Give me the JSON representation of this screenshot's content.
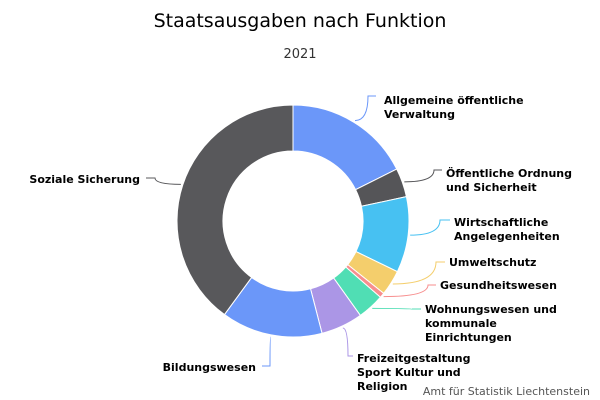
{
  "chart_data": {
    "type": "pie",
    "donut": true,
    "title": "Staatsausgaben nach Funktion",
    "subtitle": "2021",
    "credit": "Amt für Statistik Liechtenstein",
    "slices": [
      {
        "name": "Allgemeine öffentliche Verwaltung",
        "value": 17.5,
        "color": "#6b97f9",
        "label_lines": [
          "Allgemeine öffentliche",
          "Verwaltung"
        ]
      },
      {
        "name": "Öffentliche Ordnung und Sicherheit",
        "value": 4.0,
        "color": "#555558",
        "label_lines": [
          "Öffentliche Ordnung",
          "und Sicherheit"
        ]
      },
      {
        "name": "Wirtschaftliche Angelegenheiten",
        "value": 10.5,
        "color": "#47c1f2",
        "label_lines": [
          "Wirtschaftliche",
          "Angelegenheiten"
        ]
      },
      {
        "name": "Umweltschutz",
        "value": 3.5,
        "color": "#f4ce6c",
        "label_lines": [
          "Umweltschutz"
        ]
      },
      {
        "name": "Gesundheitswesen",
        "value": 0.7,
        "color": "#f78e8e",
        "label_lines": [
          "Gesundheitswesen"
        ]
      },
      {
        "name": "Wohnungswesen und kommunale Einrichtungen",
        "value": 0.6,
        "color": "#999999",
        "label_lines": [
          "Wohnungswesen und",
          "kommunale",
          "Einrichtungen"
        ]
      },
      {
        "name": "Freizeitgestaltung Sport Kultur und Religion",
        "value": 3.7,
        "color": "#50deb4",
        "label_lines": [
          "Freizeitgestaltung",
          "Sport Kultur und",
          "Religion"
        ]
      },
      {
        "name": "Bildungswesen",
        "value": 5.8,
        "color": "#ab96e6",
        "label_lines": [
          "Bildungswesen"
        ]
      },
      {
        "name": "Soziale Sicherung",
        "value": 14.0,
        "color": "#5c94f8",
        "label_lines": [
          "Soziale Sicherung"
        ]
      },
      {
        "name": "Soziale Sicherung (Rest)",
        "value": 39.7,
        "color": "#58585b",
        "label_lines": []
      }
    ]
  }
}
